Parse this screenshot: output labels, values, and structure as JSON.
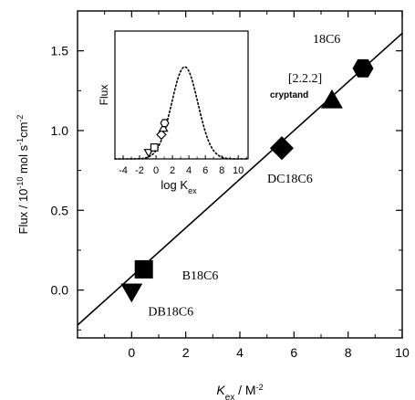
{
  "chart_data": [
    {
      "type": "scatter",
      "title": "",
      "xlabel_main": "K",
      "xlabel_sub": "ex",
      "xlabel_unit": " / M",
      "xlabel_unit_exp": "-2",
      "ylabel_html": "Flux / 10<tspan baseline-shift=\"super\" font-size=\"9\">-10</tspan> mol s<tspan baseline-shift=\"super\" font-size=\"9\">-1</tspan>cm<tspan baseline-shift=\"super\" font-size=\"9\">-2</tspan>",
      "xlim": [
        -2,
        10
      ],
      "ylim": [
        -0.3,
        1.75
      ],
      "x_ticks": [
        0,
        2,
        4,
        6,
        8,
        10
      ],
      "x_tick_labels": [
        "0",
        "2",
        "4",
        "6",
        "8",
        "10"
      ],
      "y_ticks": [
        0.0,
        0.5,
        1.0,
        1.5
      ],
      "y_tick_labels": [
        "0.0",
        "0.5",
        "1.0",
        "1.5"
      ],
      "grid": false,
      "points": [
        {
          "label": "DB18C6",
          "x": 0.0,
          "y": -0.01,
          "marker": "triangle-down"
        },
        {
          "label": "B18C6",
          "x": 0.45,
          "y": 0.13,
          "marker": "square"
        },
        {
          "label": "DC18C6",
          "x": 5.55,
          "y": 0.89,
          "marker": "diamond"
        },
        {
          "label": "[2.2.2]",
          "x": 7.4,
          "y": 1.19,
          "marker": "triangle-up"
        },
        {
          "label": "18C6",
          "x": 8.55,
          "y": 1.39,
          "marker": "hexagon"
        }
      ],
      "annotations": {
        "cryptand": "cryptand",
        "cryptand_label": "[2.2.2]"
      },
      "fit_line": {
        "x": [
          -2,
          10
        ],
        "y": [
          -0.22,
          1.61
        ]
      }
    },
    {
      "type": "scatter",
      "title": "",
      "inset": true,
      "xlabel_main": "log K",
      "xlabel_sub": "ex",
      "ylabel": "Flux",
      "xlim": [
        -5,
        11.2
      ],
      "ylim": [
        0,
        1
      ],
      "x_ticks": [
        -4,
        -2,
        0,
        2,
        4,
        6,
        8,
        10
      ],
      "x_tick_labels": [
        "-4",
        "-2",
        "0",
        "2",
        "4",
        "6",
        "8",
        "10"
      ],
      "points": [
        {
          "x": -0.9,
          "y": 0.05,
          "marker": "open-triangle-down"
        },
        {
          "x": -0.2,
          "y": 0.09,
          "marker": "open-square"
        },
        {
          "x": 0.65,
          "y": 0.19,
          "marker": "open-diamond"
        },
        {
          "x": 0.9,
          "y": 0.24,
          "marker": "open-triangle-up"
        },
        {
          "x": 1.05,
          "y": 0.28,
          "marker": "open-hexagon"
        }
      ],
      "curve": {
        "style": "dotted",
        "center": 3.5,
        "sigma": 1.6,
        "peak": 0.72
      }
    }
  ]
}
